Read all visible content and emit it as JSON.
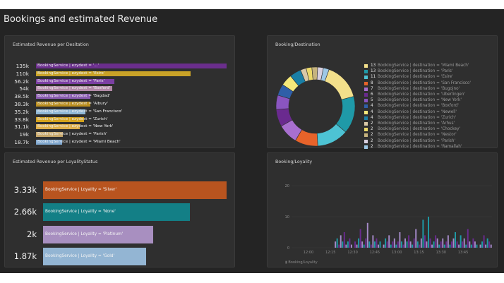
{
  "page": {
    "title": "Bookings and estimated Revenue"
  },
  "revenue_destination": {
    "title": "Estimated Revenue per Desitation",
    "rows": [
      {
        "value": "135k",
        "label": "BookingService | ezydest = '...'",
        "color": "#6b2e8d",
        "fraction": 1.0
      },
      {
        "value": "110k",
        "label": "BookingService | ezydest = 'Esire'",
        "color": "#c9a227",
        "fraction": 0.81
      },
      {
        "value": "56.2k",
        "label": "BookingService | ezydest = 'Paris'",
        "color": "#7b3fa3",
        "fraction": 0.41
      },
      {
        "value": "54k",
        "label": "BookingService | ezydest = 'Boxford'",
        "color": "#b38aa8",
        "fraction": 0.4
      },
      {
        "value": "38.5k",
        "label": "BookingService | ezydest = 'Bagdad'",
        "color": "#8a5cb0",
        "fraction": 0.285
      },
      {
        "value": "38.3k",
        "label": "BookingService | ezydest = 'Albury'",
        "color": "#b98d1d",
        "fraction": 0.284
      },
      {
        "value": "35.2k",
        "label": "BookingService | ezydest = 'San Francisco'",
        "color": "#8fb7d6",
        "fraction": 0.26
      },
      {
        "value": "33.8k",
        "label": "BookingService | ezydest = 'Zurich'",
        "color": "#d4a21c",
        "fraction": 0.25
      },
      {
        "value": "31.1k",
        "label": "BookingService | ezydest = 'New York'",
        "color": "#e0b04a",
        "fraction": 0.23
      },
      {
        "value": "19k",
        "label": "BookingService | ezydest = 'Parish'",
        "color": "#c7a76a",
        "fraction": 0.14
      },
      {
        "value": "18.7k",
        "label": "BookingService | ezydest = 'Miami Beach'",
        "color": "#7fa7cf",
        "fraction": 0.138
      }
    ]
  },
  "booking_destination": {
    "title": "Booking/Destination",
    "chart_data": {
      "type": "pie",
      "categories": [
        "Miami Beach",
        "Paris",
        "Esire",
        "San Francisco",
        "Bugojno",
        "Uberlingen",
        "New York",
        "Boxford",
        "Newell",
        "Zurich",
        "Arhus",
        "Chockey",
        "Nestor",
        "Parish",
        "Ramallah"
      ],
      "values": [
        13,
        13,
        11,
        8,
        7,
        6,
        5,
        4,
        4,
        4,
        2,
        2,
        2,
        2,
        2
      ],
      "colors": [
        "#f3e08b",
        "#1f9aa8",
        "#4dc3d4",
        "#e7632a",
        "#a86fcf",
        "#6a2a8f",
        "#8a55c0",
        "#2f5fa8",
        "#f5e97a",
        "#1a7fa6",
        "#d9c9a8",
        "#ecd96a",
        "#c6b37e",
        "#d8d0e0",
        "#9ec8e6"
      ]
    },
    "legend": [
      {
        "count": "13",
        "text": "BookingService | destination = 'Miami Beach'"
      },
      {
        "count": "13",
        "text": "BookingService | destination = 'Paris'"
      },
      {
        "count": "11",
        "text": "BookingService | destination = 'Esire'"
      },
      {
        "count": "8",
        "text": "BookingService | destination = 'San Francisco'"
      },
      {
        "count": "7",
        "text": "BookingService | destination = 'Bugojno'"
      },
      {
        "count": "6",
        "text": "BookingService | destination = 'Uberlingen'"
      },
      {
        "count": "5",
        "text": "BookingService | destination = 'New York'"
      },
      {
        "count": "4",
        "text": "BookingService | destination = 'Boxford'"
      },
      {
        "count": "4",
        "text": "BookingService | destination = 'Newell'"
      },
      {
        "count": "4",
        "text": "BookingService | destination = 'Zurich'"
      },
      {
        "count": "2",
        "text": "BookingService | destination = 'Arhus'"
      },
      {
        "count": "2",
        "text": "BookingService | destination = 'Chockey'"
      },
      {
        "count": "2",
        "text": "BookingService | destination = 'Nestor'"
      },
      {
        "count": "2",
        "text": "BookingService | destination = 'Parish'"
      },
      {
        "count": "2",
        "text": "BookingService | destination = 'Ramallah'"
      }
    ]
  },
  "revenue_loyalty": {
    "title": "Estimated Revenue per LoyalityStatus",
    "rows": [
      {
        "value": "3.33k",
        "label": "BookingService | Loyality = 'Silver'",
        "color": "#b8541f",
        "fraction": 1.0
      },
      {
        "value": "2.66k",
        "label": "BookingService | Loyality = 'None'",
        "color": "#137f86",
        "fraction": 0.8
      },
      {
        "value": "2k",
        "label": "BookingService | Loyality = 'Platinum'",
        "color": "#a88fc0",
        "fraction": 0.6
      },
      {
        "value": "1.87k",
        "label": "BookingService | Loyality = 'Gold'",
        "color": "#93b5d3",
        "fraction": 0.56
      }
    ]
  },
  "booking_loyalty": {
    "title": "Booking/Loyality",
    "footer": "Booking/Loyality",
    "chart_data": {
      "type": "bar",
      "ylim": [
        0,
        20
      ],
      "yticks": [
        "0",
        "10",
        "20"
      ],
      "xticks": [
        "12:00",
        "12:15",
        "12:30",
        "12:45",
        "13:00",
        "13:15",
        "13:30",
        "13:45"
      ],
      "series_colors": [
        "#a58ac8",
        "#1e9ba6",
        "#6a2a8f"
      ],
      "values": [
        0,
        0,
        0,
        0,
        0,
        0,
        0,
        0,
        0,
        0,
        0,
        0,
        0,
        0,
        0,
        0,
        0,
        0,
        0,
        0,
        0,
        0,
        0,
        0,
        2,
        3,
        1,
        4,
        2,
        5,
        1,
        2,
        3,
        1,
        0,
        2,
        1,
        3,
        6,
        2,
        1,
        3,
        8,
        2,
        1,
        4,
        2,
        3,
        1,
        2,
        0,
        1,
        3,
        2,
        4,
        1,
        2,
        3,
        1,
        2,
        5,
        2,
        1,
        3,
        2,
        4,
        2,
        1,
        3,
        6,
        2,
        1,
        3,
        9,
        4,
        2,
        10,
        3,
        1,
        2,
        4,
        3,
        1,
        2,
        3,
        1,
        2,
        4,
        1,
        2,
        3,
        5,
        2,
        1,
        4,
        2,
        3,
        1,
        6,
        2,
        1,
        3,
        2,
        1,
        0,
        1,
        2,
        4,
        1,
        3,
        2,
        1
      ]
    }
  }
}
